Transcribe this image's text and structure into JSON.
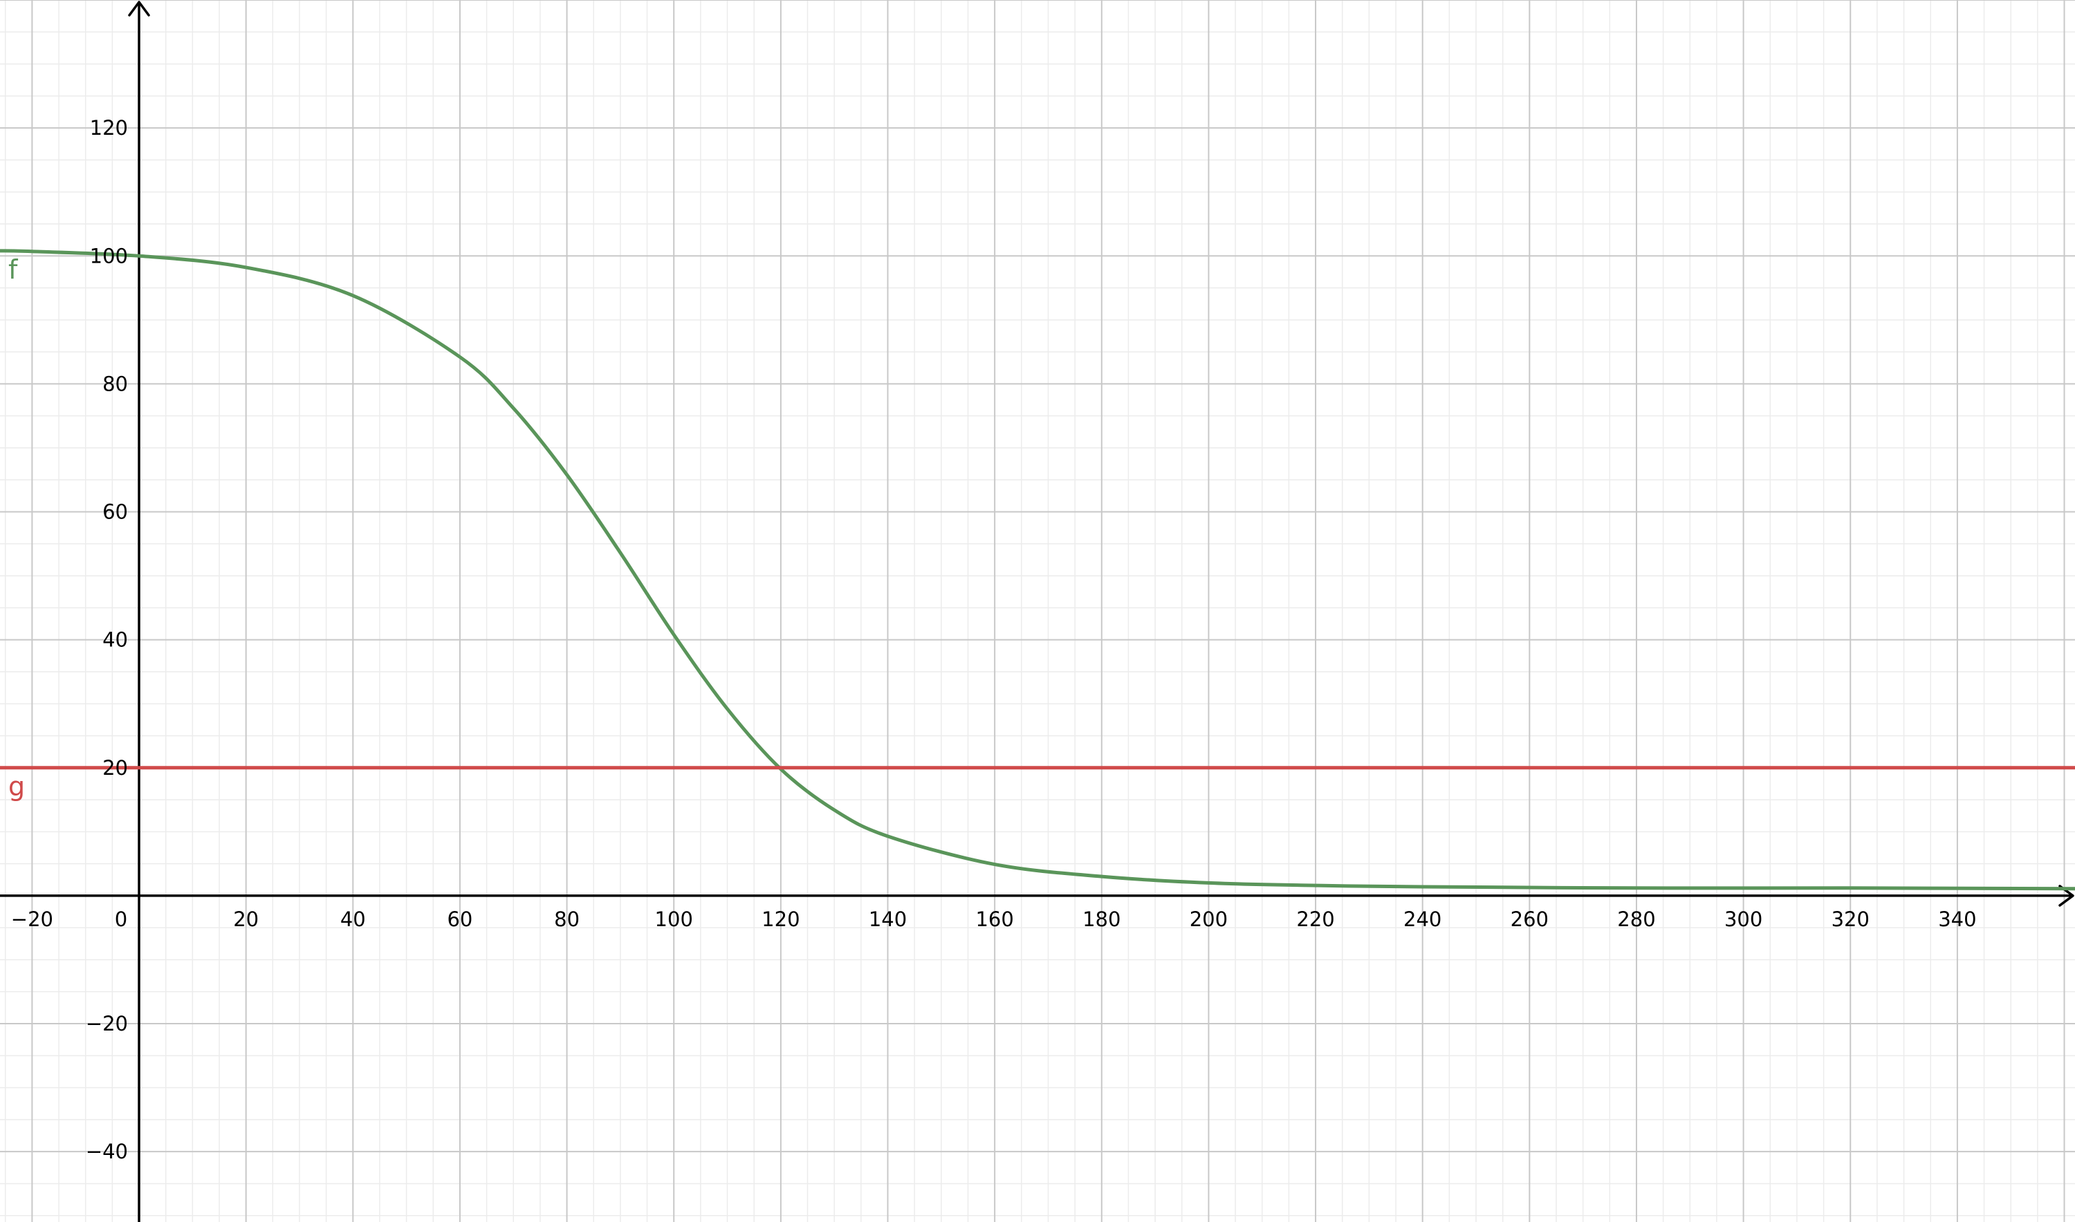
{
  "chart_data": {
    "type": "line",
    "xlim": [
      -26,
      362
    ],
    "ylim": [
      -51,
      140
    ],
    "grid": true,
    "x_ticks": [
      -20,
      0,
      20,
      40,
      60,
      80,
      100,
      120,
      140,
      160,
      180,
      200,
      220,
      240,
      260,
      280,
      300,
      320,
      340
    ],
    "y_ticks": [
      -40,
      -20,
      20,
      40,
      60,
      80,
      100,
      120
    ],
    "x_tick_labels": [
      "−20",
      "0",
      "20",
      "40",
      "60",
      "80",
      "100",
      "120",
      "140",
      "160",
      "180",
      "200",
      "220",
      "240",
      "260",
      "280",
      "300",
      "320",
      "340"
    ],
    "y_tick_labels": [
      "−40",
      "−20",
      "20",
      "40",
      "60",
      "80",
      "100",
      "120"
    ],
    "series": [
      {
        "name": "f",
        "color": "#5a955a",
        "x": [
          -26,
          -20,
          0,
          20,
          40,
          60,
          70,
          80,
          90,
          100,
          110,
          120,
          130,
          140,
          160,
          180,
          200,
          220,
          240,
          280,
          320,
          362
        ],
        "y": [
          100.8,
          100.7,
          100.0,
          98.2,
          93.8,
          84.2,
          76.2,
          65.8,
          53.6,
          40.8,
          29.2,
          19.8,
          13.4,
          9.3,
          4.9,
          3.0,
          2.0,
          1.6,
          1.4,
          1.2,
          1.2,
          1.1
        ]
      },
      {
        "name": "g",
        "color": "#d04a4a",
        "x": [
          -26,
          362
        ],
        "y": [
          20,
          20
        ]
      }
    ]
  }
}
